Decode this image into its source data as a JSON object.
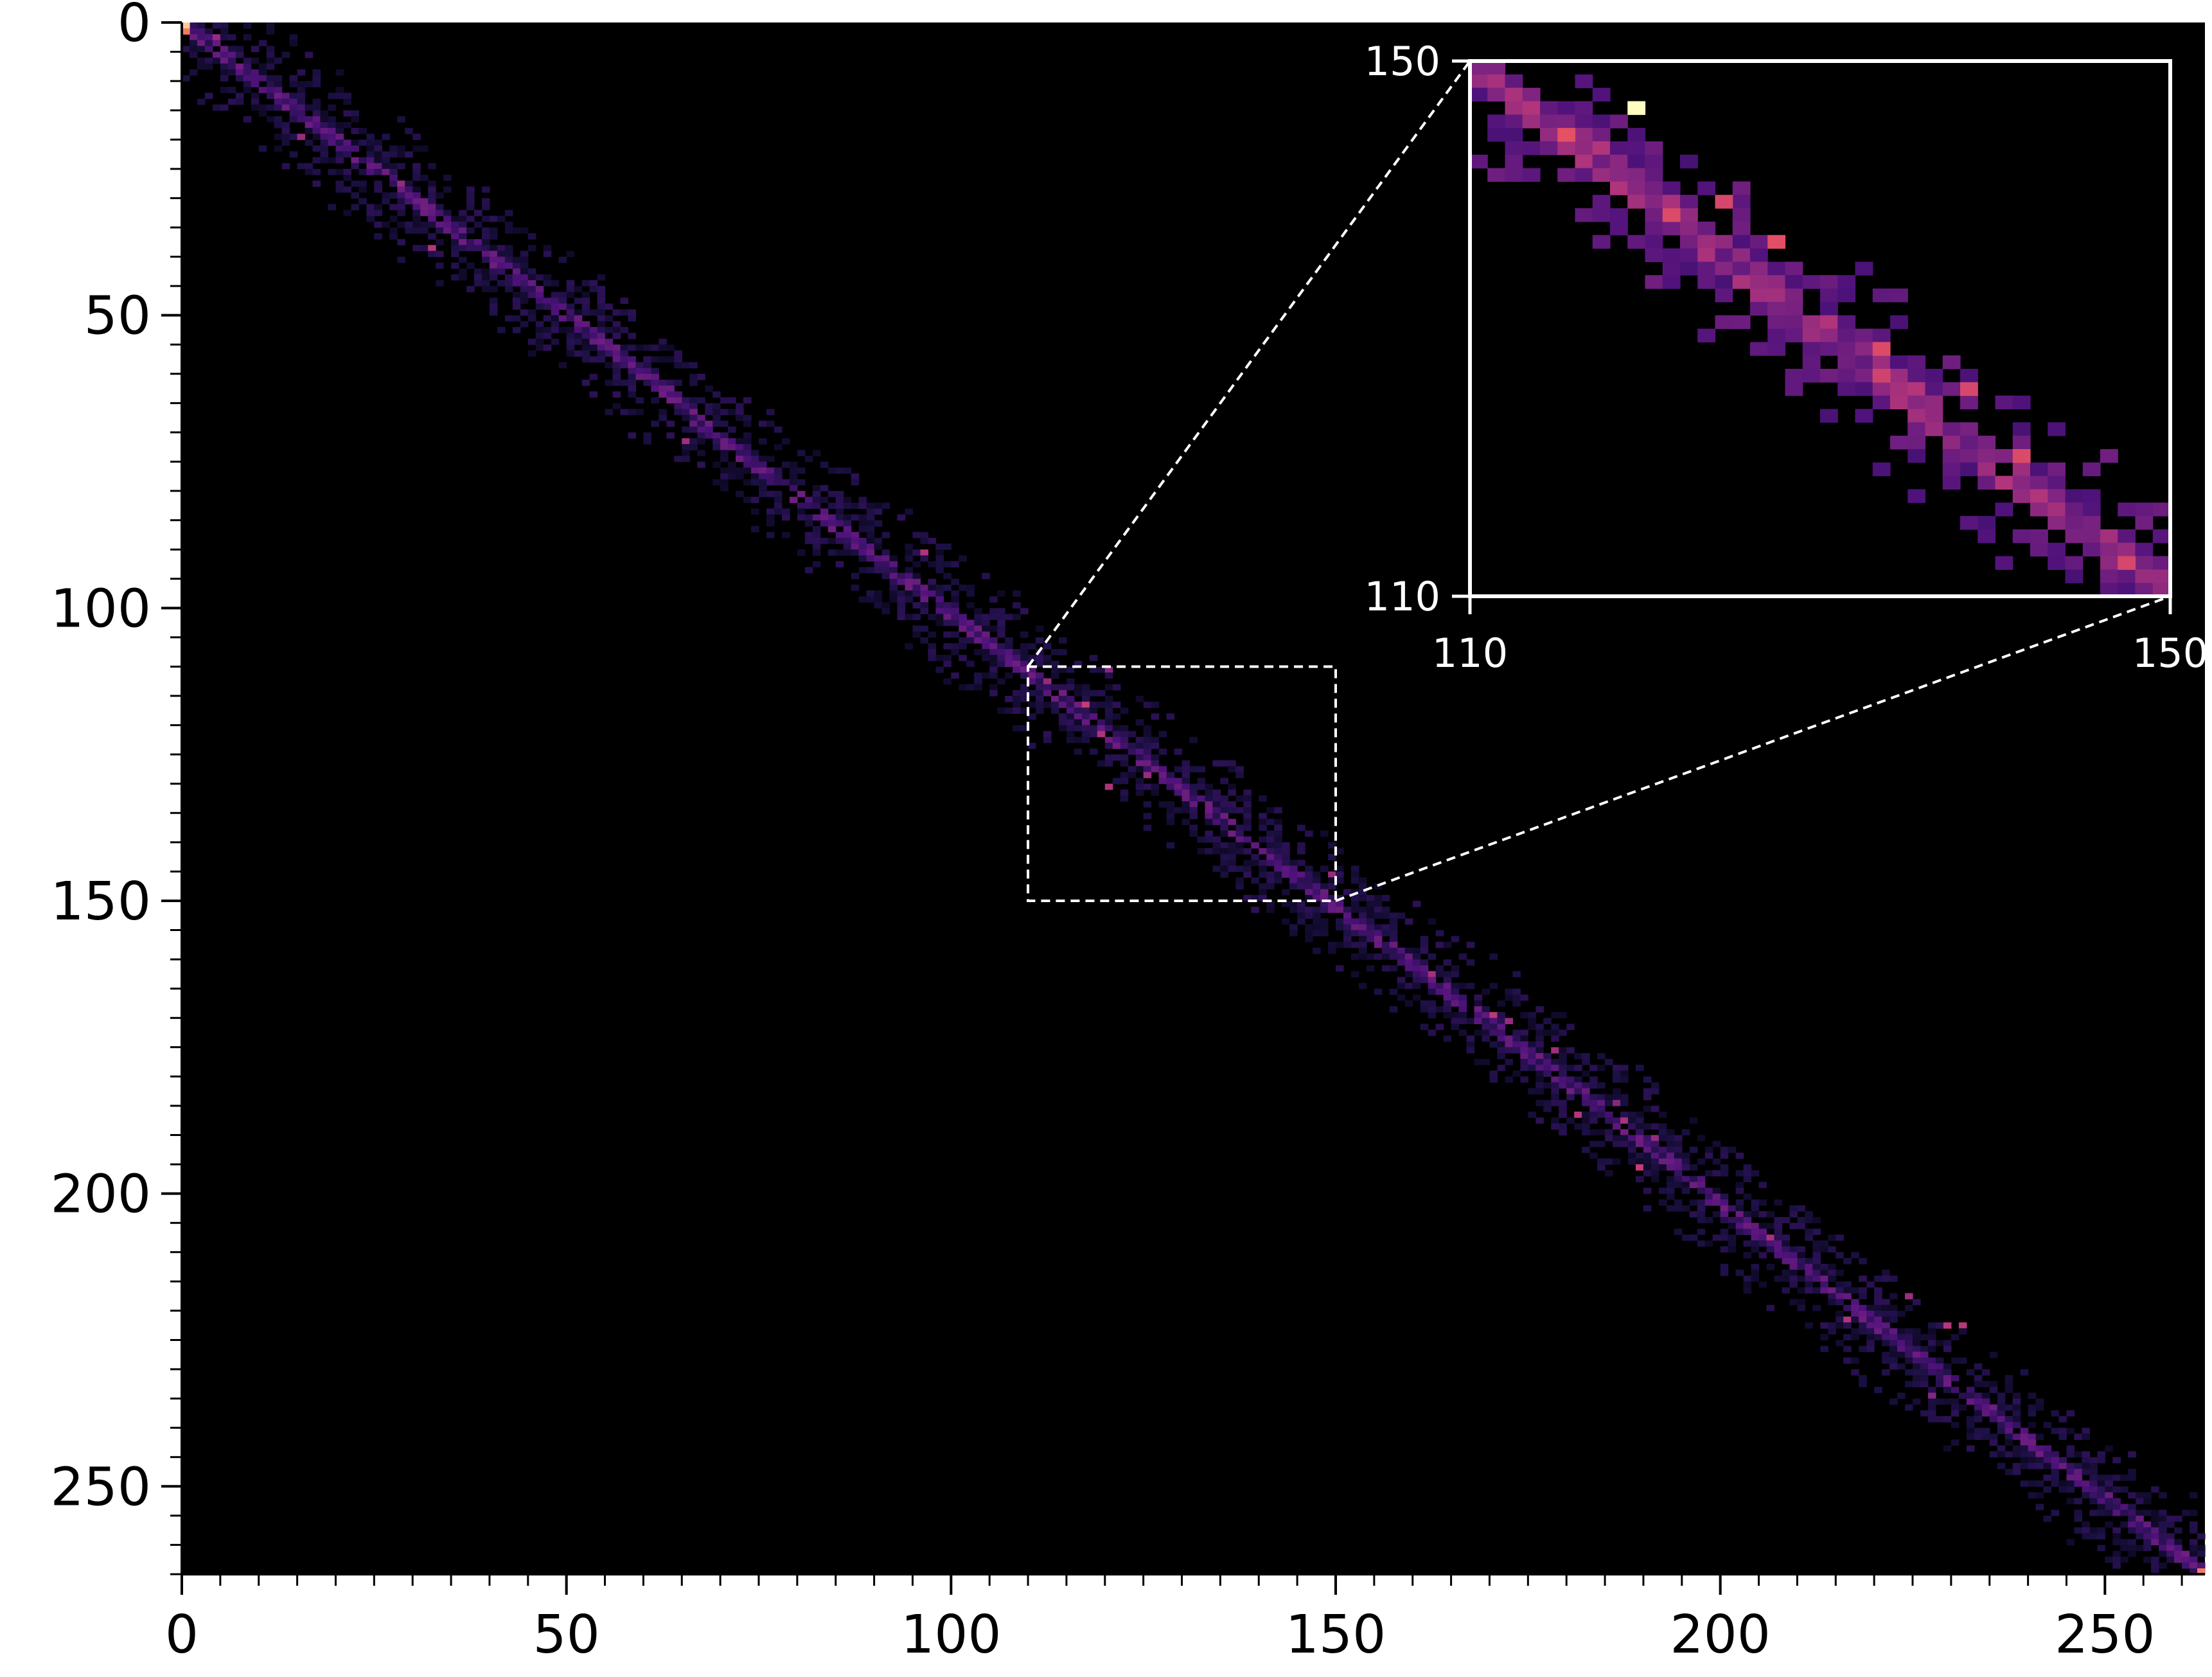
{
  "chart_data": {
    "type": "heatmap",
    "title": "",
    "xlabel": "",
    "ylabel": "",
    "colormap": "magma",
    "background_color": "#000000",
    "xlim": [
      0,
      263
    ],
    "ylim": [
      0,
      265
    ],
    "y_inverted": true,
    "x_ticks": [
      "0",
      "50",
      "100",
      "150",
      "200",
      "250"
    ],
    "x_tick_values": [
      0,
      50,
      100,
      150,
      200,
      250
    ],
    "y_ticks": [
      "0",
      "50",
      "100",
      "150",
      "200",
      "250"
    ],
    "y_tick_values": [
      0,
      50,
      100,
      150,
      200,
      250
    ],
    "x_minor_tick_step": 5,
    "y_minor_tick_step": 5,
    "diagonal_band": {
      "start": [
        0,
        0
      ],
      "end": [
        263,
        265
      ],
      "core_intensity_range": [
        0.15,
        0.95
      ],
      "spread_radius": 12
    },
    "bright_corner_cells": [
      {
        "x": 0,
        "y": 0,
        "intensity": 0.95
      },
      {
        "x": 0,
        "y": 1,
        "intensity": 0.85
      },
      {
        "x": 262,
        "y": 264,
        "intensity": 0.85
      }
    ],
    "zoom_region": {
      "x": [
        110,
        150
      ],
      "y": [
        110,
        150
      ]
    },
    "inset": {
      "x_ticks": [
        "110",
        "150"
      ],
      "x_tick_values": [
        110,
        150
      ],
      "y_ticks": [
        "150",
        "110"
      ],
      "y_tick_values": [
        150,
        110
      ],
      "peak_cells": [
        {
          "x": 119,
          "y": 113,
          "intensity": 1.0
        },
        {
          "x": 115,
          "y": 115,
          "intensity": 0.75
        },
        {
          "x": 121,
          "y": 121,
          "intensity": 0.72
        },
        {
          "x": 127,
          "y": 123,
          "intensity": 0.74
        },
        {
          "x": 124,
          "y": 120,
          "intensity": 0.7
        },
        {
          "x": 133,
          "y": 131,
          "intensity": 0.72
        },
        {
          "x": 133,
          "y": 133,
          "intensity": 0.68
        },
        {
          "x": 138,
          "y": 134,
          "intensity": 0.7
        },
        {
          "x": 141,
          "y": 139,
          "intensity": 0.72
        },
        {
          "x": 147,
          "y": 147,
          "intensity": 0.7
        }
      ]
    }
  }
}
